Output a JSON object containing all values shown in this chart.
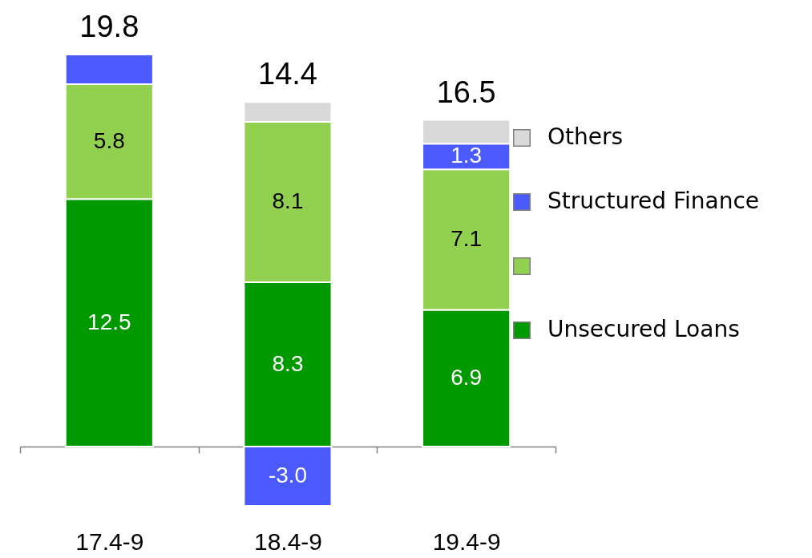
{
  "chart_data": {
    "type": "bar",
    "stacked": true,
    "categories": [
      "17.4-9",
      "18.4-9",
      "19.4-9"
    ],
    "series": [
      {
        "name": "Unsecured Loans",
        "color": "#009900",
        "values": [
          12.5,
          8.3,
          6.9
        ],
        "value_labels": [
          "12.5",
          "8.3",
          "6.9"
        ]
      },
      {
        "color": "#92d050",
        "values": [
          5.8,
          8.1,
          7.1
        ],
        "value_labels": [
          "5.8",
          "8.1",
          "7.1"
        ]
      },
      {
        "name": "Structured Finance",
        "color": "#4a5aff",
        "values": [
          1.5,
          -3.0,
          1.3
        ],
        "value_labels": [
          null,
          "-3.0",
          "1.3"
        ]
      },
      {
        "name": "Others",
        "color": "#d9d9d9",
        "values": [
          null,
          1.0,
          1.2
        ]
      }
    ],
    "totals": [
      "19.8",
      "14.4",
      "16.5"
    ],
    "tick_labels": "x",
    "legend": "right"
  }
}
